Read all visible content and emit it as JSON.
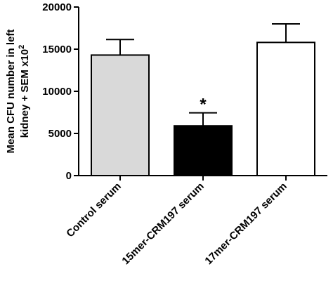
{
  "chart_data": {
    "type": "bar",
    "categories": [
      "Control serum",
      "15mer-CRM197 serum",
      "17mer-CRM197 serum"
    ],
    "values": [
      14300,
      5900,
      15800
    ],
    "errors": [
      1850,
      1550,
      2200
    ],
    "bar_colors": [
      "#d9d9d9",
      "#000000",
      "#ffffff"
    ],
    "bar_border": "#000000",
    "title": "",
    "xlabel": "",
    "ylabel": [
      "Mean CFU number in left",
      "kidney + SEM x10"
    ],
    "ylabel_superscript": "2",
    "ylim": [
      0,
      20000
    ],
    "yticks": [
      0,
      5000,
      10000,
      15000,
      20000
    ],
    "ytick_labels": [
      "0",
      "5000",
      "10000",
      "15000",
      "20000"
    ],
    "grid": false,
    "legend": "none",
    "annotations": [
      {
        "category_index": 1,
        "text": "*"
      }
    ]
  }
}
